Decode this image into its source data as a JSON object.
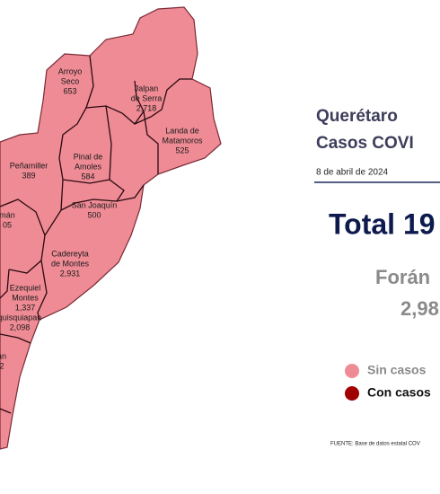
{
  "header": {
    "title_line1": "Querétaro",
    "title_line2": "Casos COVI",
    "date": "8 de abril de 2024"
  },
  "totals": {
    "total": "Total 19",
    "foraneos_label": "Forán",
    "foraneos_value": "2,98"
  },
  "legend": {
    "items": [
      "Sin casos",
      "Con casos"
    ]
  },
  "source": "FUENTE: Base de datos estatal COV",
  "map": {
    "regions": [
      {
        "label": [
          "Arroyo",
          "Seco"
        ],
        "cases": "653"
      },
      {
        "label": [
          "Jalpan",
          "de Serra"
        ],
        "cases": "2,718"
      },
      {
        "label": [
          "Landa de",
          "Matamoros"
        ],
        "cases": "525"
      },
      {
        "label": [
          "Pinal de",
          "Amoles"
        ],
        "cases": "584"
      },
      {
        "label": [
          "Peñamiller"
        ],
        "cases": "389"
      },
      {
        "label": [
          "San Joaquín"
        ],
        "cases": "500"
      },
      {
        "label": [
          "Cadereyta",
          "de Montes"
        ],
        "cases": "2,931"
      },
      {
        "label": [
          "Ezequiel",
          "Montes"
        ],
        "cases": "1,337"
      },
      {
        "label": [
          "quisquiapan"
        ],
        "cases": "2,098"
      },
      {
        "label": [
          "mán"
        ],
        "cases": "05"
      },
      {
        "label": [
          "an"
        ],
        "cases": "2"
      }
    ]
  }
}
